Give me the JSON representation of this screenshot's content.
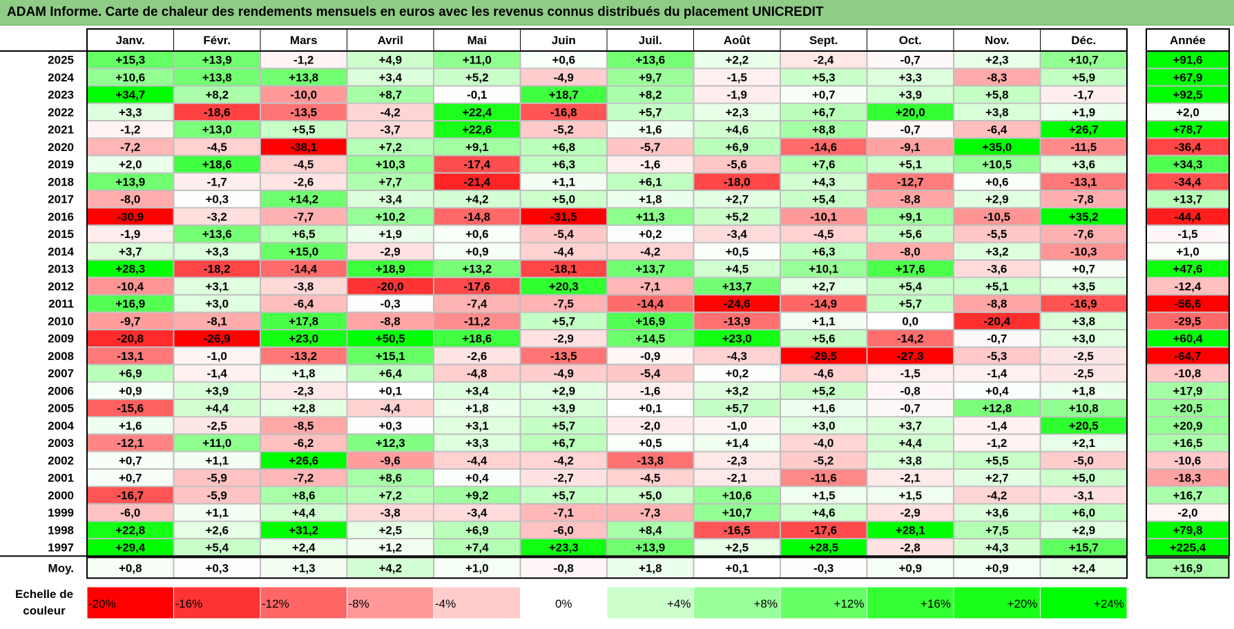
{
  "title": "ADAM Informe. Carte de chaleur des rendements mensuels en euros avec les revenus connus distribués du placement UNICREDIT",
  "chart_data": {
    "type": "heatmap",
    "months": [
      "Janv.",
      "Févr.",
      "Mars",
      "Avril",
      "Mai",
      "Juin",
      "Juil.",
      "Août",
      "Sept.",
      "Oct.",
      "Nov.",
      "Déc."
    ],
    "year_header": "Année",
    "rows": [
      {
        "year": "2025",
        "values": [
          "+15,3",
          "+13,9",
          "-1,2",
          "+4,9",
          "+11,0",
          "+0,6",
          "+13,6",
          "+2,2",
          "-2,4",
          "-0,7",
          "+2,3",
          "+10,7"
        ],
        "annual": "+91,6"
      },
      {
        "year": "2024",
        "values": [
          "+10,6",
          "+13,8",
          "+13,8",
          "+3,4",
          "+5,2",
          "-4,9",
          "+9,7",
          "-1,5",
          "+5,3",
          "+3,3",
          "-8,3",
          "+5,9"
        ],
        "annual": "+67,9"
      },
      {
        "year": "2023",
        "values": [
          "+34,7",
          "+8,2",
          "-10,0",
          "+8,7",
          "-0,1",
          "+18,7",
          "+8,2",
          "-1,9",
          "+0,7",
          "+3,9",
          "+5,8",
          "-1,7"
        ],
        "annual": "+92,5"
      },
      {
        "year": "2022",
        "values": [
          "+3,3",
          "-18,6",
          "-13,5",
          "-4,2",
          "+22,4",
          "-16,8",
          "+5,7",
          "+2,3",
          "+6,7",
          "+20,0",
          "+3,8",
          "+1,9"
        ],
        "annual": "+2,0"
      },
      {
        "year": "2021",
        "values": [
          "-1,2",
          "+13,0",
          "+5,5",
          "-3,7",
          "+22,6",
          "-5,2",
          "+1,6",
          "+4,6",
          "+8,8",
          "-0,7",
          "-6,4",
          "+26,7"
        ],
        "annual": "+78,7"
      },
      {
        "year": "2020",
        "values": [
          "-7,2",
          "-4,5",
          "-38,1",
          "+7,2",
          "+9,1",
          "+6,8",
          "-5,7",
          "+6,9",
          "-14,6",
          "-9,1",
          "+35,0",
          "-11,5"
        ],
        "annual": "-36,4"
      },
      {
        "year": "2019",
        "values": [
          "+2,0",
          "+18,6",
          "-4,5",
          "+10,3",
          "-17,4",
          "+6,3",
          "-1,6",
          "-5,6",
          "+7,6",
          "+5,1",
          "+10,5",
          "+3,6"
        ],
        "annual": "+34,3"
      },
      {
        "year": "2018",
        "values": [
          "+13,9",
          "-1,7",
          "-2,6",
          "+7,7",
          "-21,4",
          "+1,1",
          "+6,1",
          "-18,0",
          "+4,3",
          "-12,7",
          "+0,6",
          "-13,1"
        ],
        "annual": "-34,4"
      },
      {
        "year": "2017",
        "values": [
          "-8,0",
          "+0,3",
          "+14,2",
          "+3,4",
          "+4,2",
          "+5,0",
          "+1,8",
          "+2,7",
          "+5,4",
          "-8,8",
          "+2,9",
          "-7,8"
        ],
        "annual": "+13,7"
      },
      {
        "year": "2016",
        "values": [
          "-30,9",
          "-3,2",
          "-7,7",
          "+10,2",
          "-14,8",
          "-31,5",
          "+11,3",
          "+5,2",
          "-10,1",
          "+9,1",
          "-10,5",
          "+35,2"
        ],
        "annual": "-44,4"
      },
      {
        "year": "2015",
        "values": [
          "-1,9",
          "+13,6",
          "+6,5",
          "+1,9",
          "+0,6",
          "-5,4",
          "+0,2",
          "-3,4",
          "-4,5",
          "+5,6",
          "-5,5",
          "-7,6"
        ],
        "annual": "-1,5"
      },
      {
        "year": "2014",
        "values": [
          "+3,7",
          "+3,3",
          "+15,0",
          "-2,9",
          "+0,9",
          "-4,4",
          "-4,2",
          "+0,5",
          "+6,3",
          "-8,0",
          "+3,2",
          "-10,3"
        ],
        "annual": "+1,0"
      },
      {
        "year": "2013",
        "values": [
          "+28,3",
          "-18,2",
          "-14,4",
          "+18,9",
          "+13,2",
          "-18,1",
          "+13,7",
          "+4,5",
          "+10,1",
          "+17,6",
          "-3,6",
          "+0,7"
        ],
        "annual": "+47,6"
      },
      {
        "year": "2012",
        "values": [
          "-10,4",
          "+3,1",
          "-3,8",
          "-20,0",
          "-17,6",
          "+20,3",
          "-7,1",
          "+13,7",
          "+2,7",
          "+5,4",
          "+5,1",
          "+3,5"
        ],
        "annual": "-12,4"
      },
      {
        "year": "2011",
        "values": [
          "+16,9",
          "+3,0",
          "-6,4",
          "-0,3",
          "-7,4",
          "-7,5",
          "-14,4",
          "-24,6",
          "-14,9",
          "+5,7",
          "-8,8",
          "-16,9"
        ],
        "annual": "-56,6"
      },
      {
        "year": "2010",
        "values": [
          "-9,7",
          "-8,1",
          "+17,8",
          "-8,8",
          "-11,2",
          "+5,7",
          "+16,9",
          "-13,9",
          "+1,1",
          "0,0",
          "-20,4",
          "+3,8"
        ],
        "annual": "-29,5"
      },
      {
        "year": "2009",
        "values": [
          "-20,8",
          "-26,9",
          "+23,0",
          "+50,5",
          "+18,6",
          "-2,9",
          "+14,5",
          "+23,0",
          "+5,6",
          "-14,2",
          "-0,7",
          "+3,0"
        ],
        "annual": "+60,4"
      },
      {
        "year": "2008",
        "values": [
          "-13,1",
          "-1,0",
          "-13,2",
          "+15,1",
          "-2,6",
          "-13,5",
          "-0,9",
          "-4,3",
          "-29,5",
          "-27,3",
          "-5,3",
          "-2,5"
        ],
        "annual": "-64,7"
      },
      {
        "year": "2007",
        "values": [
          "+6,9",
          "-1,4",
          "+1,8",
          "+6,4",
          "-4,8",
          "-4,9",
          "-5,4",
          "+0,2",
          "-4,6",
          "-1,5",
          "-1,4",
          "-2,5"
        ],
        "annual": "-10,8"
      },
      {
        "year": "2006",
        "values": [
          "+0,9",
          "+3,9",
          "-2,3",
          "+0,1",
          "+3,4",
          "+2,9",
          "-1,6",
          "+3,2",
          "+5,2",
          "-0,8",
          "+0,4",
          "+1,8"
        ],
        "annual": "+17,9"
      },
      {
        "year": "2005",
        "values": [
          "-15,6",
          "+4,4",
          "+2,8",
          "-4,4",
          "+1,8",
          "+3,9",
          "+0,1",
          "+5,7",
          "+1,6",
          "-0,7",
          "+12,8",
          "+10,8"
        ],
        "annual": "+20,5"
      },
      {
        "year": "2004",
        "values": [
          "+1,6",
          "-2,5",
          "-8,5",
          "+0,3",
          "+3,1",
          "+5,7",
          "-2,0",
          "-1,0",
          "+3,0",
          "+3,7",
          "-1,4",
          "+20,5"
        ],
        "annual": "+20,9"
      },
      {
        "year": "2003",
        "values": [
          "-12,1",
          "+11,0",
          "-6,2",
          "+12,3",
          "+3,3",
          "+6,7",
          "+0,5",
          "+1,4",
          "-4,0",
          "+4,4",
          "-1,2",
          "+2,1"
        ],
        "annual": "+16,5"
      },
      {
        "year": "2002",
        "values": [
          "+0,7",
          "+1,1",
          "+26,6",
          "-9,6",
          "-4,4",
          "-4,2",
          "-13,8",
          "-2,3",
          "-5,2",
          "+3,8",
          "+5,5",
          "-5,0"
        ],
        "annual": "-10,6"
      },
      {
        "year": "2001",
        "values": [
          "+0,7",
          "-5,9",
          "-7,2",
          "+8,6",
          "+0,4",
          "-2,7",
          "-4,5",
          "-2,1",
          "-11,6",
          "-2,1",
          "+2,7",
          "+5,0"
        ],
        "annual": "-18,3"
      },
      {
        "year": "2000",
        "values": [
          "-16,7",
          "-5,9",
          "+8,6",
          "+7,2",
          "+9,2",
          "+5,7",
          "+5,0",
          "+10,6",
          "+1,5",
          "+1,5",
          "-4,2",
          "-3,1"
        ],
        "annual": "+16,7"
      },
      {
        "year": "1999",
        "values": [
          "-6,0",
          "+1,1",
          "+4,4",
          "-3,8",
          "-3,4",
          "-7,1",
          "-7,3",
          "+10,7",
          "+4,6",
          "-2,9",
          "+3,6",
          "+6,0"
        ],
        "annual": "-2,0"
      },
      {
        "year": "1998",
        "values": [
          "+22,8",
          "+2,6",
          "+31,2",
          "+2,5",
          "+6,9",
          "-6,0",
          "+8,4",
          "-16,5",
          "-17,6",
          "+28,1",
          "+7,5",
          "+2,9"
        ],
        "annual": "+79,8"
      },
      {
        "year": "1997",
        "values": [
          "+29,4",
          "+5,4",
          "+2,4",
          "+1,2",
          "+7,4",
          "+23,3",
          "+13,9",
          "+2,5",
          "+28,5",
          "-2,8",
          "+4,3",
          "+15,7"
        ],
        "annual": "+225,4"
      }
    ],
    "average_label": "Moy.",
    "averages": [
      "+0,8",
      "+0,3",
      "+1,3",
      "+4,2",
      "+1,0",
      "-0,8",
      "+1,8",
      "+0,1",
      "-0,3",
      "+0,9",
      "+0,9",
      "+2,4"
    ],
    "average_annual": "+16,9",
    "scale_label_line1": "Echelle de",
    "scale_label_line2": "couleur",
    "scale": [
      {
        "label": "-20%",
        "color": "#ff0000"
      },
      {
        "label": "-16%",
        "color": "#ff3333"
      },
      {
        "label": "-12%",
        "color": "#ff6666"
      },
      {
        "label": "-8%",
        "color": "#ff9999"
      },
      {
        "label": "-4%",
        "color": "#ffcccc"
      },
      {
        "label": "0%",
        "color": "#ffffff"
      },
      {
        "label": "+4%",
        "color": "#ccffcc"
      },
      {
        "label": "+8%",
        "color": "#99ff99"
      },
      {
        "label": "+12%",
        "color": "#66ff66"
      },
      {
        "label": "+16%",
        "color": "#33ff33"
      },
      {
        "label": "+20%",
        "color": "#1aff1a"
      },
      {
        "label": "+24%",
        "color": "#00ff00"
      }
    ]
  }
}
